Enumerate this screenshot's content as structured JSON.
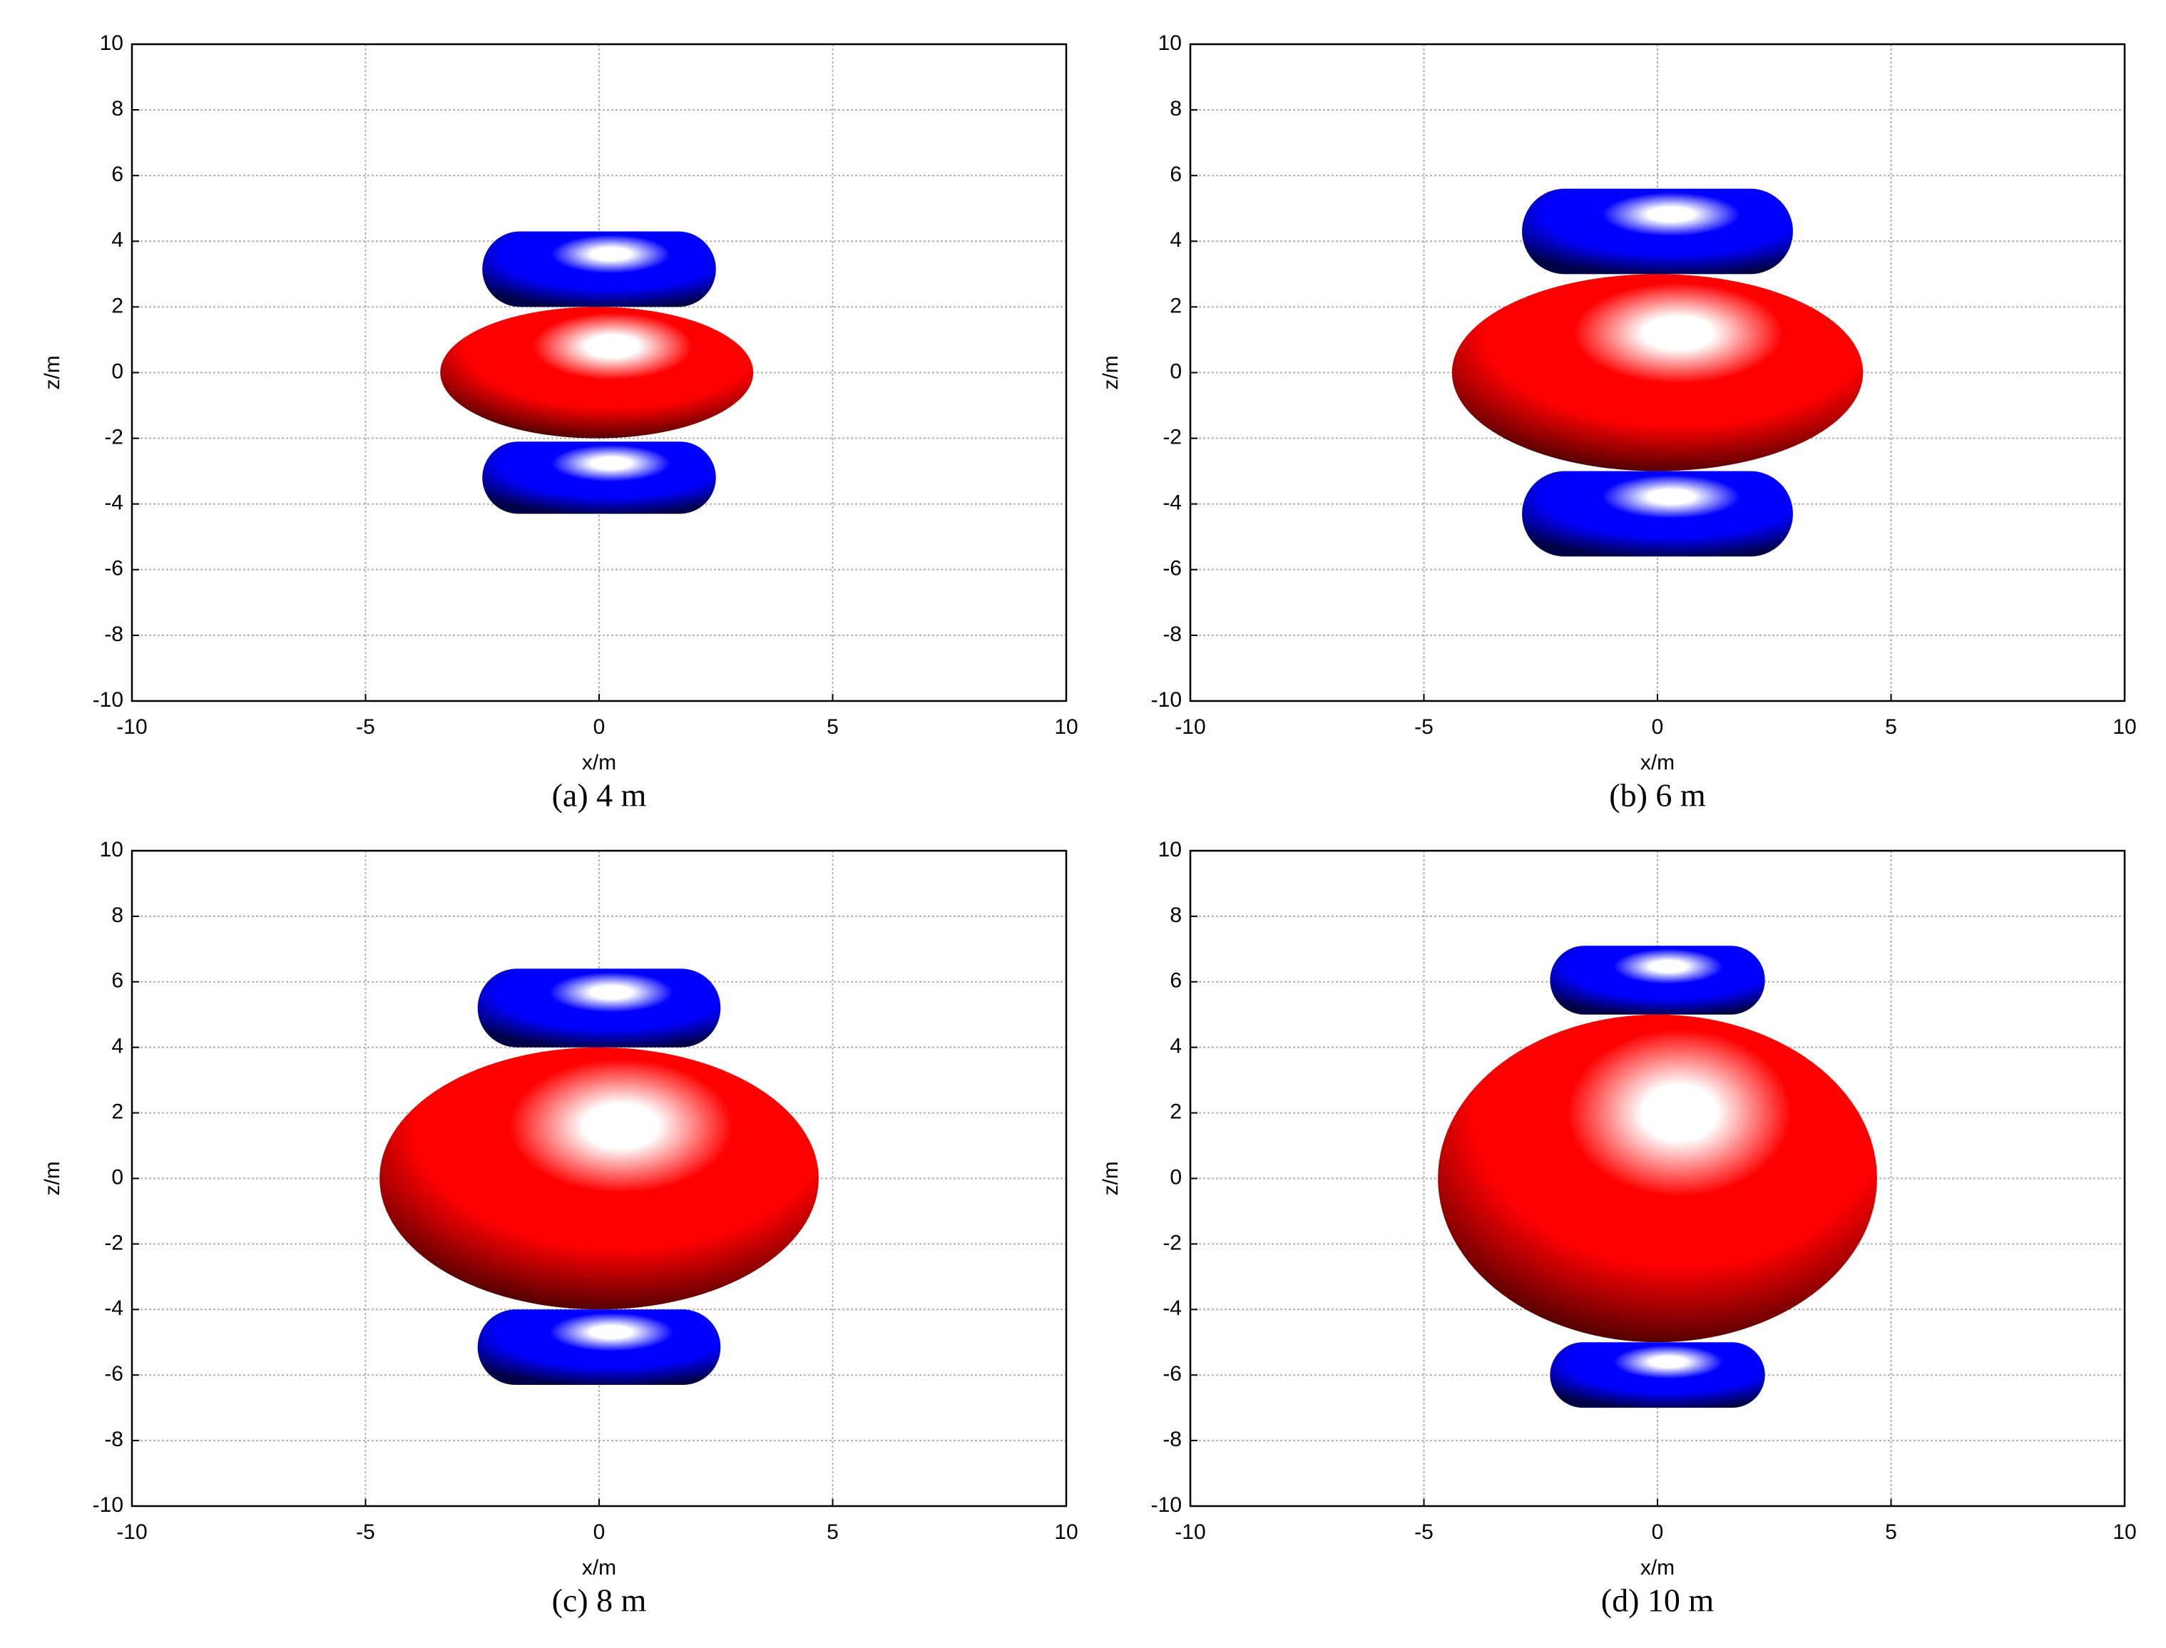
{
  "chart_data": [
    {
      "type": "isosurface",
      "caption": "(a) 4 m",
      "xlabel": "x/m",
      "ylabel": "z/m",
      "xlim": [
        -10,
        10
      ],
      "ylim": [
        -10,
        10
      ],
      "xticks": [
        -10,
        -5,
        0,
        5,
        10
      ],
      "yticks": [
        -10,
        -8,
        -6,
        -4,
        -2,
        0,
        2,
        4,
        6,
        8,
        10
      ],
      "grid": true,
      "shapes": [
        {
          "color": "#ff0000",
          "x": [
            -3.4,
            3.3
          ],
          "z": [
            -2.0,
            2.0
          ]
        },
        {
          "color": "#0000ff",
          "x": [
            -2.5,
            2.5
          ],
          "z": [
            2.0,
            4.3
          ]
        },
        {
          "color": "#0000ff",
          "x": [
            -2.5,
            2.5
          ],
          "z": [
            -4.3,
            -2.1
          ]
        }
      ]
    },
    {
      "type": "isosurface",
      "caption": "(b) 6 m",
      "xlabel": "x/m",
      "ylabel": "z/m",
      "xlim": [
        -10,
        10
      ],
      "ylim": [
        -10,
        10
      ],
      "xticks": [
        -10,
        -5,
        0,
        5,
        10
      ],
      "yticks": [
        -10,
        -8,
        -6,
        -4,
        -2,
        0,
        2,
        4,
        6,
        8,
        10
      ],
      "grid": true,
      "shapes": [
        {
          "color": "#ff0000",
          "x": [
            -4.4,
            4.4
          ],
          "z": [
            -3.0,
            3.0
          ]
        },
        {
          "color": "#0000ff",
          "x": [
            -2.9,
            2.9
          ],
          "z": [
            3.0,
            5.6
          ]
        },
        {
          "color": "#0000ff",
          "x": [
            -2.9,
            2.9
          ],
          "z": [
            -5.6,
            -3.0
          ]
        }
      ]
    },
    {
      "type": "isosurface",
      "caption": "(c) 8 m",
      "xlabel": "x/m",
      "ylabel": "z/m",
      "xlim": [
        -10,
        10
      ],
      "ylim": [
        -10,
        10
      ],
      "xticks": [
        -10,
        -5,
        0,
        5,
        10
      ],
      "yticks": [
        -10,
        -8,
        -6,
        -4,
        -2,
        0,
        2,
        4,
        6,
        8,
        10
      ],
      "grid": true,
      "shapes": [
        {
          "color": "#ff0000",
          "x": [
            -4.7,
            4.7
          ],
          "z": [
            -4.0,
            4.0
          ]
        },
        {
          "color": "#0000ff",
          "x": [
            -2.6,
            2.6
          ],
          "z": [
            4.0,
            6.4
          ]
        },
        {
          "color": "#0000ff",
          "x": [
            -2.6,
            2.6
          ],
          "z": [
            -6.3,
            -4.0
          ]
        }
      ]
    },
    {
      "type": "isosurface",
      "caption": "(d) 10 m",
      "xlabel": "x/m",
      "ylabel": "z/m",
      "xlim": [
        -10,
        10
      ],
      "ylim": [
        -10,
        10
      ],
      "xticks": [
        -10,
        -5,
        0,
        5,
        10
      ],
      "yticks": [
        -10,
        -8,
        -6,
        -4,
        -2,
        0,
        2,
        4,
        6,
        8,
        10
      ],
      "grid": true,
      "shapes": [
        {
          "color": "#ff0000",
          "x": [
            -4.7,
            4.7
          ],
          "z": [
            -5.0,
            5.0
          ]
        },
        {
          "color": "#0000ff",
          "x": [
            -2.3,
            2.3
          ],
          "z": [
            5.0,
            7.1
          ]
        },
        {
          "color": "#0000ff",
          "x": [
            -2.3,
            2.3
          ],
          "z": [
            -7.0,
            -5.0
          ]
        }
      ]
    }
  ]
}
